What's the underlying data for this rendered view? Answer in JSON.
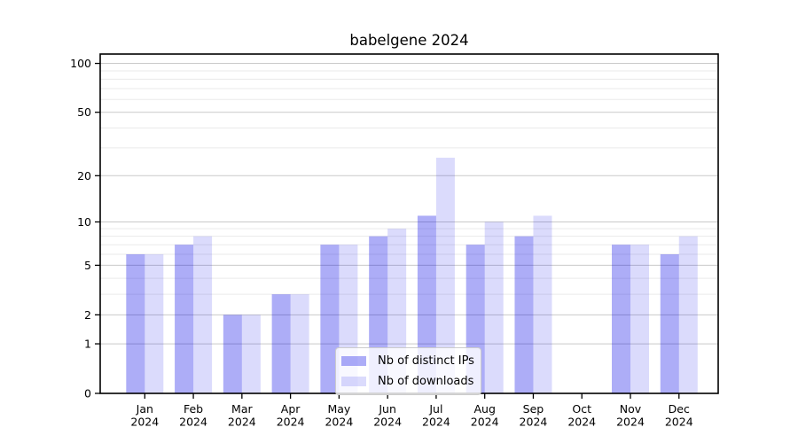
{
  "chart_data": {
    "type": "bar",
    "title": "babelgene 2024",
    "categories": [
      "Jan",
      "Feb",
      "Mar",
      "Apr",
      "May",
      "Jun",
      "Jul",
      "Aug",
      "Sep",
      "Oct",
      "Nov",
      "Dec"
    ],
    "x_tick_second_line": "2024",
    "series": [
      {
        "name": "Nb of distinct IPs",
        "values": [
          6,
          7,
          2,
          3,
          7,
          8,
          11,
          7,
          8,
          0,
          7,
          6
        ],
        "color": "#0808E8",
        "fill_opacity": 0.335
      },
      {
        "name": "Nb of downloads",
        "values": [
          6,
          8,
          2,
          3,
          7,
          9,
          26,
          10,
          11,
          0,
          7,
          8
        ],
        "color": "#0808E8",
        "fill_opacity": 0.145
      }
    ],
    "y_scale": "log1p",
    "y_axis_major_ticks": [
      0,
      1,
      2,
      5,
      10,
      20,
      50,
      100
    ],
    "y_axis_minor_ticks": [
      3,
      4,
      6,
      7,
      8,
      9,
      30,
      40,
      60,
      70,
      80,
      90
    ],
    "ylim": [
      0,
      114
    ],
    "xlabel": "",
    "ylabel": "",
    "grid": true,
    "legend_position": "lower center"
  },
  "colors": {
    "bar_distinct_ips_rendered": "#ABAAF9",
    "bar_downloads_rendered": "#DCDCF9",
    "grid_major": "#C9C9C9",
    "grid_minor": "#EAEAEA",
    "axes": "#000000"
  }
}
